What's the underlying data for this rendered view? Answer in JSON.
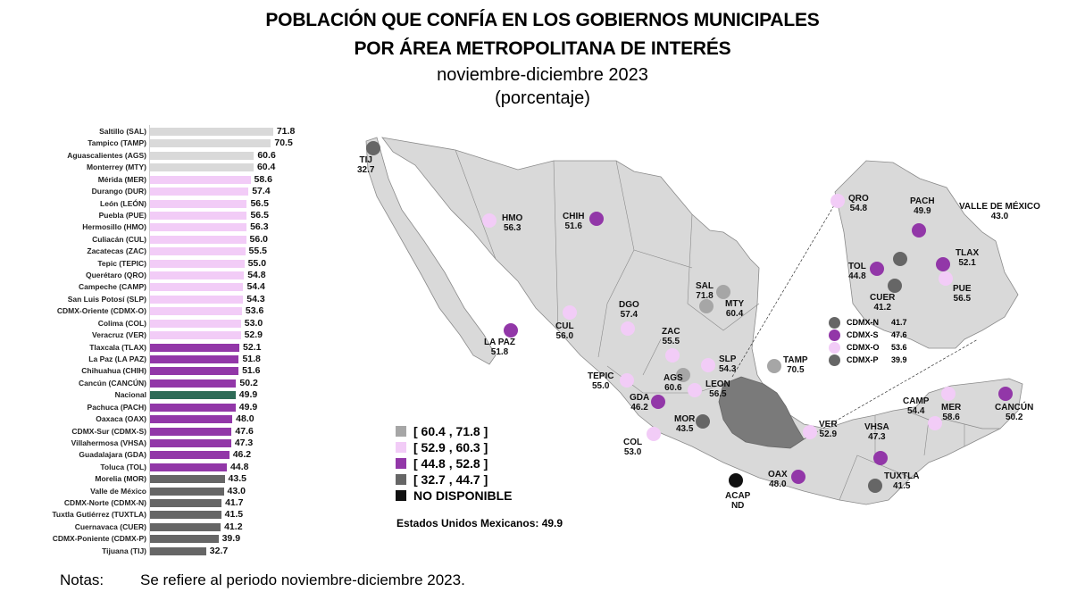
{
  "title": {
    "line1": "POBLACIÓN QUE CONFÍA EN LOS GOBIERNOS MUNICIPALES",
    "line2": "POR ÁREA METROPOLITANA DE INTERÉS",
    "period": "noviembre-diciembre 2023",
    "unit": "(porcentaje)"
  },
  "colors": {
    "range1": "#d9d9d9",
    "range1_map": "#a6a6a6",
    "range2": "#f2ccf7",
    "range3": "#9237a8",
    "range4": "#666666",
    "nacional": "#2e6b57",
    "no_disponible": "#111111",
    "map_fill": "#d9d9d9",
    "map_stroke": "#8a8a8a",
    "cdmx_region": "#7a7a7a"
  },
  "chart_data": [
    {
      "type": "bar",
      "orientation": "horizontal",
      "title": "POBLACIÓN QUE CONFÍA EN LOS GOBIERNOS MUNICIPALES POR ÁREA METROPOLITANA DE INTERÉS",
      "subtitle": "noviembre-diciembre 2023 (porcentaje)",
      "xlabel": "",
      "ylabel": "",
      "grid": false,
      "categories": [
        "Saltillo (SAL)",
        "Tampico (TAMP)",
        "Aguascalientes (AGS)",
        "Monterrey (MTY)",
        "Mérida (MER)",
        "Durango (DUR)",
        "León (LEÓN)",
        "Puebla (PUE)",
        "Hermosillo (HMO)",
        "Culiacán (CUL)",
        "Zacatecas (ZAC)",
        "Tepic (TEPIC)",
        "Querétaro (QRO)",
        "Campeche (CAMP)",
        "San Luis Potosí (SLP)",
        "CDMX-Oriente (CDMX-O)",
        "Colima (COL)",
        "Veracruz (VER)",
        "Tlaxcala (TLAX)",
        "La Paz (LA PAZ)",
        "Chihuahua (CHIH)",
        "Cancún (CANCÚN)",
        "Nacional",
        "Pachuca (PACH)",
        "Oaxaca (OAX)",
        "CDMX-Sur (CDMX-S)",
        "Villahermosa (VHSA)",
        "Guadalajara (GDA)",
        "Toluca (TOL)",
        "Morelia (MOR)",
        "Valle de México",
        "CDMX-Norte (CDMX-N)",
        "Tuxtla Gutiérrez (TUXTLA)",
        "Cuernavaca (CUER)",
        "CDMX-Poniente (CDMX-P)",
        "Tijuana (TIJ)"
      ],
      "values": [
        71.8,
        70.5,
        60.6,
        60.4,
        58.6,
        57.4,
        56.5,
        56.5,
        56.3,
        56.0,
        55.5,
        55.0,
        54.8,
        54.4,
        54.3,
        53.6,
        53.0,
        52.9,
        52.1,
        51.8,
        51.6,
        50.2,
        49.9,
        49.9,
        48.0,
        47.6,
        47.3,
        46.2,
        44.8,
        43.5,
        43.0,
        41.7,
        41.5,
        41.2,
        39.9,
        32.7
      ],
      "value_labels": [
        "71.8",
        "70.5",
        "60.6",
        "60.4",
        "58.6",
        "57.4",
        "56.5",
        "56.5",
        "56.3",
        "56.0",
        "55.5",
        "55.0",
        "54.8",
        "54.4",
        "54.3",
        "53.6",
        "53.0",
        "52.9",
        "52.1",
        "51.8",
        "51.6",
        "50.2",
        "49.9",
        "49.9",
        "48.0",
        "47.6",
        "47.3",
        "46.2",
        "44.8",
        "43.5",
        "43.0",
        "41.7",
        "41.5",
        "41.2",
        "39.9",
        "32.7"
      ],
      "groups": [
        1,
        1,
        1,
        1,
        2,
        2,
        2,
        2,
        2,
        2,
        2,
        2,
        2,
        2,
        2,
        2,
        2,
        2,
        3,
        3,
        3,
        3,
        0,
        3,
        3,
        3,
        3,
        3,
        3,
        4,
        4,
        4,
        4,
        4,
        4,
        4
      ]
    },
    {
      "type": "map",
      "title": "Estados Unidos Mexicanos",
      "legend": [
        {
          "label": "[ 60.4 , 71.8 ]",
          "group": 1
        },
        {
          "label": "[ 52.9 , 60.3 ]",
          "group": 2
        },
        {
          "label": "[ 44.8 , 52.8 ]",
          "group": 3
        },
        {
          "label": "[ 32.7 , 44.7 ]",
          "group": 4
        },
        {
          "label": "NO DISPONIBLE",
          "group": 5
        }
      ],
      "national_label": "Estados Unidos Mexicanos: 49.9",
      "points": [
        {
          "code": "TIJ",
          "value": "32.7",
          "group": 4
        },
        {
          "code": "HMO",
          "value": "56.3",
          "group": 2
        },
        {
          "code": "CHIH",
          "value": "51.6",
          "group": 3
        },
        {
          "code": "LA PAZ",
          "value": "51.8",
          "group": 3
        },
        {
          "code": "CUL",
          "value": "56.0",
          "group": 2
        },
        {
          "code": "DGO",
          "value": "57.4",
          "group": 2
        },
        {
          "code": "SAL",
          "value": "71.8",
          "group": 1
        },
        {
          "code": "MTY",
          "value": "60.4",
          "group": 1
        },
        {
          "code": "ZAC",
          "value": "55.5",
          "group": 2
        },
        {
          "code": "SLP",
          "value": "54.3",
          "group": 2
        },
        {
          "code": "AGS",
          "value": "60.6",
          "group": 1
        },
        {
          "code": "LEON",
          "value": "56.5",
          "group": 2
        },
        {
          "code": "TEPIC",
          "value": "55.0",
          "group": 2
        },
        {
          "code": "GDA",
          "value": "46.2",
          "group": 3
        },
        {
          "code": "MOR",
          "value": "43.5",
          "group": 4
        },
        {
          "code": "COL",
          "value": "53.0",
          "group": 2
        },
        {
          "code": "TAMP",
          "value": "70.5",
          "group": 1
        },
        {
          "code": "VER",
          "value": "52.9",
          "group": 2
        },
        {
          "code": "OAX",
          "value": "48.0",
          "group": 3
        },
        {
          "code": "ACAP",
          "value": "ND",
          "group": 5
        },
        {
          "code": "VHSA",
          "value": "47.3",
          "group": 3
        },
        {
          "code": "TUXTLA",
          "value": "41.5",
          "group": 4
        },
        {
          "code": "CAMP",
          "value": "54.4",
          "group": 2
        },
        {
          "code": "MER",
          "value": "58.6",
          "group": 2
        },
        {
          "code": "CANCÚN",
          "value": "50.2",
          "group": 3
        },
        {
          "code": "QRO",
          "value": "54.8",
          "group": 2
        },
        {
          "code": "PACH",
          "value": "49.9",
          "group": 3
        },
        {
          "code": "VALLE DE MÉXICO",
          "value": "43.0",
          "group": 4
        },
        {
          "code": "TLAX",
          "value": "52.1",
          "group": 3
        },
        {
          "code": "TOL",
          "value": "44.8",
          "group": 3
        },
        {
          "code": "CUER",
          "value": "41.2",
          "group": 4
        },
        {
          "code": "PUE",
          "value": "56.5",
          "group": 2
        }
      ],
      "cdmx_inset": [
        {
          "code": "CDMX-N",
          "value": "41.7",
          "group": 4
        },
        {
          "code": "CDMX-S",
          "value": "47.6",
          "group": 3
        },
        {
          "code": "CDMX-O",
          "value": "53.6",
          "group": 2
        },
        {
          "code": "CDMX-P",
          "value": "39.9",
          "group": 4
        }
      ]
    }
  ],
  "notes": {
    "label": "Notas:",
    "text": "Se refiere al periodo noviembre-diciembre 2023."
  }
}
